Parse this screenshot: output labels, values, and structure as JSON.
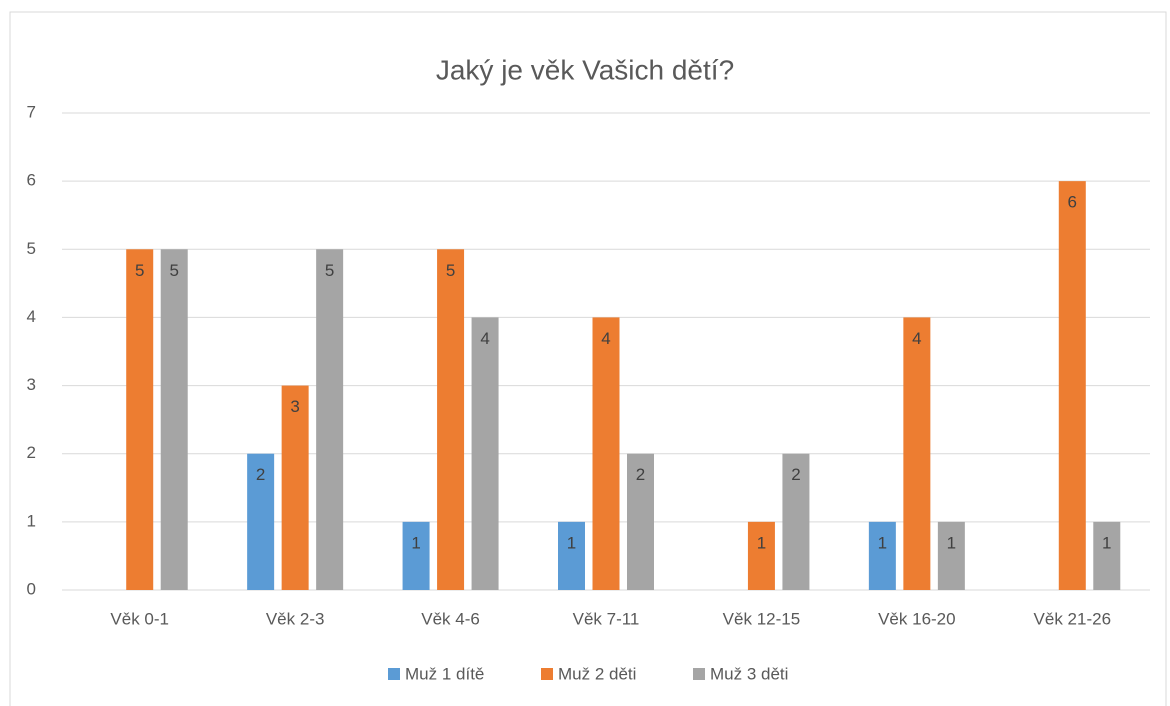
{
  "chart_data": {
    "type": "bar",
    "title": "Jaký je věk Vašich dětí?",
    "categories": [
      "Věk 0-1",
      "Věk 2-3",
      "Věk 4-6",
      "Věk 7-11",
      "Věk 12-15",
      "Věk 16-20",
      "Věk 21-26"
    ],
    "series": [
      {
        "name": "Muž 1 dítě",
        "color": "#5b9bd5",
        "values": [
          null,
          2,
          1,
          1,
          null,
          1,
          null
        ]
      },
      {
        "name": "Muž 2 děti",
        "color": "#ed7d31",
        "values": [
          5,
          3,
          5,
          4,
          1,
          4,
          6
        ]
      },
      {
        "name": "Muž 3 děti",
        "color": "#a5a5a5",
        "values": [
          5,
          5,
          4,
          2,
          2,
          1,
          1
        ]
      }
    ],
    "ylim": [
      0,
      7
    ],
    "yticks": [
      0,
      1,
      2,
      3,
      4,
      5,
      6,
      7
    ],
    "grid": true,
    "legend": "bottom"
  }
}
